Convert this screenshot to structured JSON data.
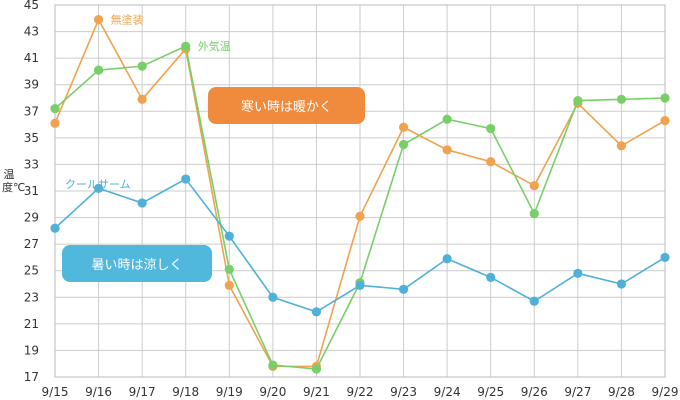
{
  "chart_data": {
    "type": "line",
    "ylabel": "温度℃",
    "xlabel": "",
    "title": "",
    "categories": [
      "9/15",
      "9/16",
      "9/17",
      "9/18",
      "9/19",
      "9/20",
      "9/21",
      "9/22",
      "9/23",
      "9/24",
      "9/25",
      "9/26",
      "9/27",
      "9/28",
      "9/29"
    ],
    "y_ticks": [
      "17",
      "19",
      "21",
      "23",
      "25",
      "27",
      "29",
      "31",
      "33",
      "35",
      "37",
      "39",
      "41",
      "43",
      "45"
    ],
    "ylim": [
      17,
      45
    ],
    "grid": true,
    "series": [
      {
        "name": "無塗装",
        "color": "#f0a24f",
        "values": [
          36.1,
          43.9,
          37.9,
          41.7,
          23.9,
          17.8,
          17.8,
          29.1,
          35.8,
          34.1,
          33.2,
          31.4,
          37.6,
          34.4,
          36.3
        ]
      },
      {
        "name": "外気温",
        "color": "#78cf6a",
        "values": [
          37.2,
          40.1,
          40.4,
          41.9,
          25.1,
          17.9,
          17.6,
          24.1,
          34.5,
          36.4,
          35.7,
          29.3,
          37.8,
          37.9,
          38.0
        ]
      },
      {
        "name": "クールサーム",
        "color": "#4fb0d8",
        "values": [
          28.2,
          31.2,
          30.1,
          31.9,
          27.6,
          23.0,
          21.9,
          23.9,
          23.6,
          25.9,
          24.5,
          22.7,
          24.8,
          24.0,
          26.0
        ]
      }
    ],
    "annotations": [
      {
        "text": "寒い時は暖かく",
        "color": "#f08a3c"
      },
      {
        "text": "暑い時は涼しく",
        "color": "#4fb8dc"
      }
    ]
  }
}
